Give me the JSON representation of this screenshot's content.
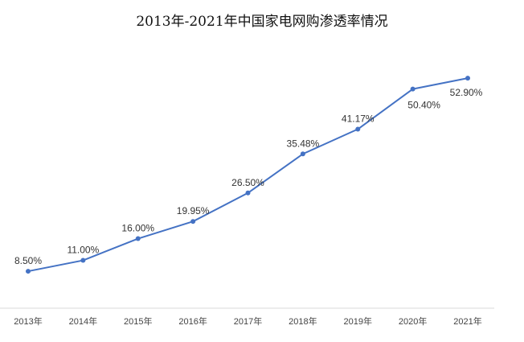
{
  "chart_data": {
    "type": "line",
    "title": "2013年-2021年中国家电网购渗透率情况",
    "xlabel": "",
    "ylabel": "",
    "categories": [
      "2013年",
      "2014年",
      "2015年",
      "2016年",
      "2017年",
      "2018年",
      "2019年",
      "2020年",
      "2021年"
    ],
    "series": [
      {
        "values": [
          8.5,
          11.0,
          16.0,
          19.95,
          26.5,
          35.48,
          41.17,
          50.4,
          52.9
        ],
        "labels": [
          "8.50%",
          "11.00%",
          "16.00%",
          "19.95%",
          "26.50%",
          "35.48%",
          "41.17%",
          "50.40%",
          "52.90%"
        ],
        "color": "#4472C4"
      }
    ],
    "ylim": [
      0,
      60
    ],
    "grid": false,
    "legend": "none"
  }
}
